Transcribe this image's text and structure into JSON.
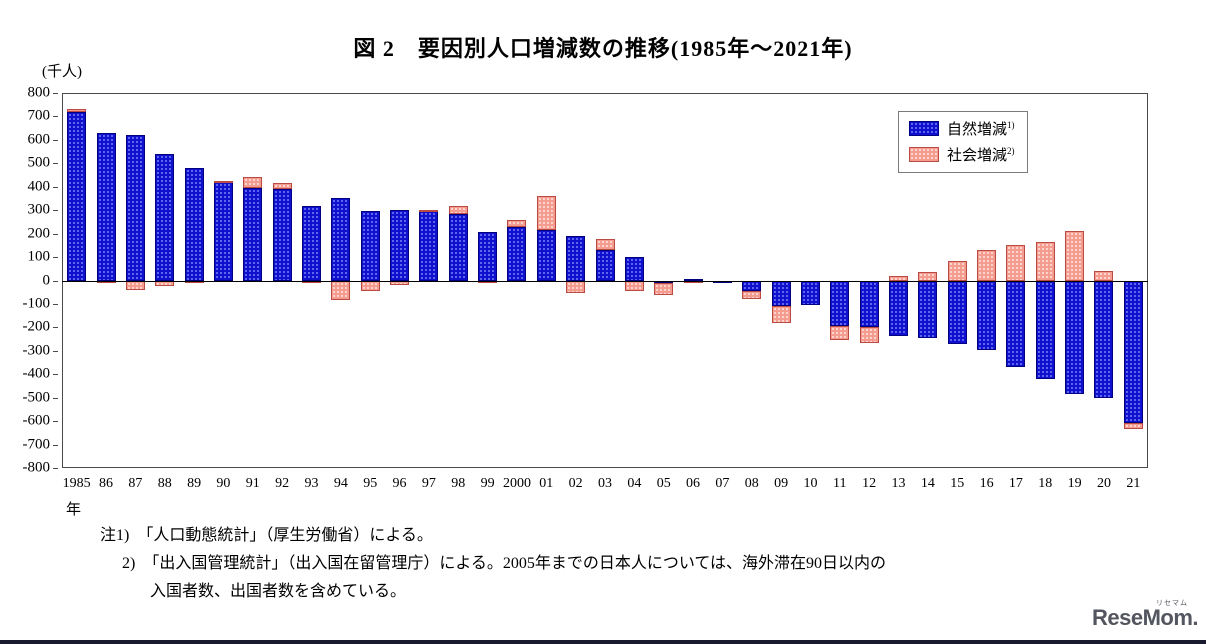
{
  "page": {
    "notes": [
      {
        "text": "注1)　「人口動態統計」（厚生労働省）による。"
      },
      {
        "text": "2)　「出入国管理統計」（出入国在留管理庁）による。2005年までの日本人については、海外滞在90日以内の"
      },
      {
        "text": "入国者数、出国者数を含めている。"
      }
    ],
    "year_axis_suffix": "年",
    "logo": {
      "main": "ReseMom.",
      "ruby": "リセマム"
    }
  },
  "colors": {
    "footer_bar": "#1a1a2e",
    "logo_text": "#53565f"
  },
  "chart_data": {
    "type": "bar",
    "stacked": true,
    "title": "図 2　要因別人口増減数の推移(1985年～2021年)",
    "ylabel": "(千人)",
    "xlabel": "年",
    "ylim": [
      -800,
      800
    ],
    "ytick_step": 100,
    "grid": false,
    "legend_position": "top-right",
    "categories": [
      "1985",
      "86",
      "87",
      "88",
      "89",
      "90",
      "91",
      "92",
      "93",
      "94",
      "95",
      "96",
      "97",
      "98",
      "99",
      "2000",
      "01",
      "02",
      "03",
      "04",
      "05",
      "06",
      "07",
      "08",
      "09",
      "10",
      "11",
      "12",
      "13",
      "14",
      "15",
      "16",
      "17",
      "18",
      "19",
      "20",
      "21"
    ],
    "series": [
      {
        "key": "natural",
        "name": "自然増減",
        "sup": "1)",
        "fill": "#1010cf",
        "border": "#000080",
        "values": [
          720,
          630,
          620,
          540,
          480,
          420,
          395,
          390,
          320,
          350,
          295,
          300,
          295,
          285,
          205,
          230,
          215,
          190,
          130,
          100,
          -10,
          5,
          -5,
          -45,
          -110,
          -105,
          -195,
          -200,
          -235,
          -245,
          -270,
          -295,
          -370,
          -420,
          -485,
          -500,
          -610
        ]
      },
      {
        "key": "social",
        "name": "社会増減",
        "sup": "2)",
        "fill": "#f49c90",
        "border": "#bb4a42",
        "values": [
          10,
          -10,
          -40,
          -25,
          -10,
          5,
          45,
          25,
          -10,
          -85,
          -45,
          -20,
          5,
          35,
          -10,
          30,
          145,
          -55,
          45,
          -45,
          -50,
          -5,
          0,
          -35,
          -70,
          0,
          -60,
          -65,
          20,
          35,
          85,
          130,
          150,
          165,
          210,
          40,
          -25
        ]
      }
    ]
  }
}
